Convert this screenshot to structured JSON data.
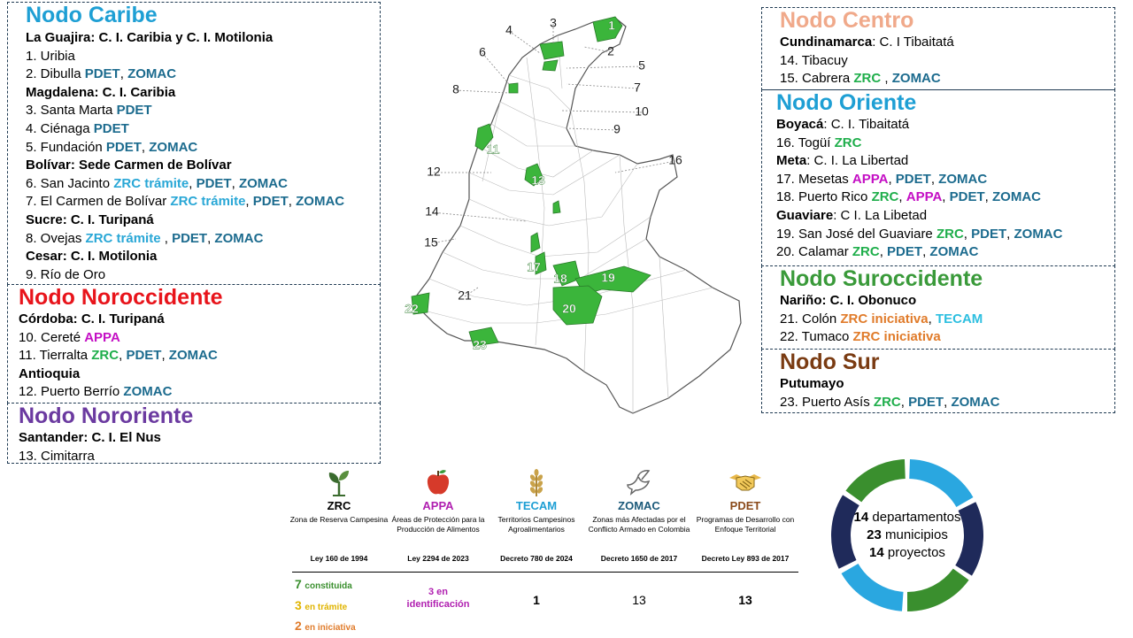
{
  "nodes": {
    "caribe": {
      "title": "Nodo Caribe",
      "color": "#1e9fd4",
      "lines": [
        [
          {
            "t": "La Guajira: C. I. Caribia y C. I. Motilonia",
            "c": "b"
          }
        ],
        [
          {
            "t": "1. Uribia",
            "c": ""
          }
        ],
        [
          {
            "t": "2. Dibulla ",
            "c": ""
          },
          {
            "t": "PDET",
            "c": "pdet"
          },
          {
            "t": ", ",
            "c": ""
          },
          {
            "t": "ZOMAC",
            "c": "zomac"
          }
        ],
        [
          {
            "t": "Magdalena: C. I. Caribia",
            "c": "b"
          }
        ],
        [
          {
            "t": "3. Santa Marta ",
            "c": ""
          },
          {
            "t": "PDET",
            "c": "pdet"
          }
        ],
        [
          {
            "t": "4. Ciénaga ",
            "c": ""
          },
          {
            "t": "PDET",
            "c": "pdet"
          }
        ],
        [
          {
            "t": "5. Fundación ",
            "c": ""
          },
          {
            "t": "PDET",
            "c": "pdet"
          },
          {
            "t": ", ",
            "c": ""
          },
          {
            "t": "ZOMAC",
            "c": "zomac"
          }
        ],
        [
          {
            "t": "Bolívar: Sede Carmen de Bolívar",
            "c": "b"
          }
        ],
        [
          {
            "t": "6. San Jacinto ",
            "c": ""
          },
          {
            "t": "ZRC trámite",
            "c": "zrct"
          },
          {
            "t": ", ",
            "c": ""
          },
          {
            "t": "PDET",
            "c": "pdet"
          },
          {
            "t": ", ",
            "c": ""
          },
          {
            "t": "ZOMAC",
            "c": "zomac"
          }
        ],
        [
          {
            "t": "7. El Carmen de Bolívar ",
            "c": ""
          },
          {
            "t": "ZRC trámite",
            "c": "zrct"
          },
          {
            "t": ", ",
            "c": ""
          },
          {
            "t": "PDET",
            "c": "pdet"
          },
          {
            "t": ", ",
            "c": ""
          },
          {
            "t": "ZOMAC",
            "c": "zomac"
          }
        ],
        [
          {
            "t": "Sucre: C. I. Turipaná",
            "c": "b"
          }
        ],
        [
          {
            "t": "8. Ovejas ",
            "c": ""
          },
          {
            "t": "ZRC trámite",
            "c": "zrct"
          },
          {
            "t": " , ",
            "c": ""
          },
          {
            "t": "PDET",
            "c": "pdet"
          },
          {
            "t": ", ",
            "c": ""
          },
          {
            "t": "ZOMAC",
            "c": "zomac"
          }
        ],
        [
          {
            "t": "Cesar: C. I. Motilonia",
            "c": "b"
          }
        ],
        [
          {
            "t": "9. Río de Oro",
            "c": ""
          }
        ]
      ]
    },
    "noroccidente": {
      "title": "Nodo Noroccidente",
      "color": "#e8141b",
      "lines": [
        [
          {
            "t": "Córdoba: C. I. Turipaná",
            "c": "b"
          }
        ],
        [
          {
            "t": "10. Cereté ",
            "c": ""
          },
          {
            "t": "APPA",
            "c": "appa"
          }
        ],
        [
          {
            "t": "11. Tierralta ",
            "c": ""
          },
          {
            "t": "ZRC",
            "c": "zrc"
          },
          {
            "t": ", ",
            "c": ""
          },
          {
            "t": "PDET",
            "c": "pdet"
          },
          {
            "t": ", ",
            "c": ""
          },
          {
            "t": "ZOMAC",
            "c": "zomac"
          }
        ],
        [
          {
            "t": "Antioquia",
            "c": "b"
          }
        ],
        [
          {
            "t": "12. Puerto Berrío ",
            "c": ""
          },
          {
            "t": "ZOMAC",
            "c": "zomac"
          }
        ]
      ]
    },
    "nororiente": {
      "title": "Nodo Nororiente",
      "color": "#6b3aa0",
      "lines": [
        [
          {
            "t": "Santander: C. I. El Nus",
            "c": "b"
          }
        ],
        [
          {
            "t": "13. Cimitarra",
            "c": ""
          }
        ]
      ]
    },
    "centro": {
      "title": "Nodo Centro",
      "color": "#f0a98a",
      "lines": [
        [
          {
            "t": "Cundinamarca",
            "c": "b"
          },
          {
            "t": ": C. I Tibaitatá",
            "c": ""
          }
        ],
        [
          {
            "t": "14. Tibacuy",
            "c": ""
          }
        ],
        [
          {
            "t": "15. Cabrera ",
            "c": ""
          },
          {
            "t": "ZRC",
            "c": "zrc"
          },
          {
            "t": " , ",
            "c": ""
          },
          {
            "t": "ZOMAC",
            "c": "zomac"
          }
        ]
      ]
    },
    "oriente": {
      "title": "Nodo Oriente",
      "color": "#1e9fd4",
      "lines": [
        [
          {
            "t": "Boyacá",
            "c": "b"
          },
          {
            "t": ": C. I. Tibaitatá",
            "c": ""
          }
        ],
        [
          {
            "t": "16. Togüí ",
            "c": ""
          },
          {
            "t": "ZRC",
            "c": "zrc"
          }
        ],
        [
          {
            "t": "Meta",
            "c": "b"
          },
          {
            "t": ":   C. I. La Libertad",
            "c": ""
          }
        ],
        [
          {
            "t": "17. Mesetas ",
            "c": ""
          },
          {
            "t": "APPA",
            "c": "appa"
          },
          {
            "t": ", ",
            "c": ""
          },
          {
            "t": "PDET",
            "c": "pdet"
          },
          {
            "t": ", ",
            "c": ""
          },
          {
            "t": "ZOMAC",
            "c": "zomac"
          }
        ],
        [
          {
            "t": "18. Puerto Rico ",
            "c": ""
          },
          {
            "t": "ZRC",
            "c": "zrc"
          },
          {
            "t": ", ",
            "c": ""
          },
          {
            "t": "APPA",
            "c": "appa"
          },
          {
            "t": ", ",
            "c": ""
          },
          {
            "t": "PDET",
            "c": "pdet"
          },
          {
            "t": ", ",
            "c": ""
          },
          {
            "t": "ZOMAC",
            "c": "zomac"
          }
        ],
        [
          {
            "t": "Guaviare",
            "c": "b"
          },
          {
            "t": ":  C I. La Libetad",
            "c": ""
          }
        ],
        [
          {
            "t": "19. San José del Guaviare ",
            "c": ""
          },
          {
            "t": "ZRC",
            "c": "zrc"
          },
          {
            "t": ", ",
            "c": ""
          },
          {
            "t": "PDET",
            "c": "pdet"
          },
          {
            "t": ", ",
            "c": ""
          },
          {
            "t": "ZOMAC",
            "c": "zomac"
          }
        ],
        [
          {
            "t": "20. Calamar ",
            "c": ""
          },
          {
            "t": "ZRC",
            "c": "zrc"
          },
          {
            "t": ", ",
            "c": ""
          },
          {
            "t": "PDET",
            "c": "pdet"
          },
          {
            "t": ", ",
            "c": ""
          },
          {
            "t": "ZOMAC",
            "c": "zomac"
          }
        ]
      ]
    },
    "suroccidente": {
      "title": "Nodo Suroccidente",
      "color": "#3a9a3a",
      "lines": [
        [
          {
            "t": "Nariño: C. I. Obonuco",
            "c": "b"
          }
        ],
        [
          {
            "t": "21. Colón ",
            "c": ""
          },
          {
            "t": "ZRC iniciativa",
            "c": "zrci"
          },
          {
            "t": ", ",
            "c": ""
          },
          {
            "t": "TECAM",
            "c": "tecam"
          }
        ],
        [
          {
            "t": "22. Tumaco ",
            "c": ""
          },
          {
            "t": "ZRC iniciativa",
            "c": "zrci"
          }
        ]
      ]
    },
    "sur": {
      "title": "Nodo Sur",
      "color": "#7a3b12",
      "lines": [
        [
          {
            "t": "Putumayo",
            "c": "b"
          }
        ],
        [
          {
            "t": "23. Puerto Asís ",
            "c": ""
          },
          {
            "t": "ZRC",
            "c": "zrc"
          },
          {
            "t": ", ",
            "c": ""
          },
          {
            "t": "PDET",
            "c": "pdet"
          },
          {
            "t": ", ",
            "c": ""
          },
          {
            "t": "ZOMAC",
            "c": "zomac"
          }
        ]
      ]
    }
  },
  "map": {
    "labels": [
      "1",
      "2",
      "3",
      "4",
      "5",
      "6",
      "7",
      "8",
      "9",
      "10",
      "11",
      "12",
      "13",
      "14",
      "15",
      "16",
      "17",
      "18",
      "19",
      "20",
      "21",
      "22",
      "23"
    ]
  },
  "legend": [
    {
      "icon": "sprout-icon",
      "title": "ZRC",
      "title_color": "#000000",
      "desc": "Zona de Reserva Campesina",
      "law": "Ley 160 de 1994"
    },
    {
      "icon": "apple-icon",
      "title": "APPA",
      "title_color": "#b01fb0",
      "desc": "Áreas de Protección para la Producción de Alimentos",
      "law": "Ley 2294 de 2023"
    },
    {
      "icon": "wheat-icon",
      "title": "TECAM",
      "title_color": "#1e9fd4",
      "desc": "Territorios Campesinos Agroalimentarios",
      "law": "Decreto 780 de 2024"
    },
    {
      "icon": "dove-icon",
      "title": "ZOMAC",
      "title_color": "#1c5a7a",
      "desc": "Zonas más Afectadas por el Conflicto Armado en Colombia",
      "law": "Decreto 1650 de 2017"
    },
    {
      "icon": "handshake-icon",
      "title": "PDET",
      "title_color": "#8a4a1a",
      "desc": "Programas de Desarrollo con Enfoque Territorial",
      "law": "Decreto Ley 893 de 2017"
    }
  ],
  "zrc_status": [
    {
      "num": "7",
      "label": "constituida"
    },
    {
      "num": "3",
      "label": "en trámite"
    },
    {
      "num": "2",
      "label": "en iniciativa"
    }
  ],
  "legend_values": {
    "appa_line1": "3 en",
    "appa_line2": "identificación",
    "tecam": "1",
    "zomac": "13",
    "pdet": "13"
  },
  "summary": {
    "dept_num": "14",
    "dept_label": " departamentos",
    "mun_num": "23",
    "mun_label": " municipios",
    "proj_num": "14",
    "proj_label": " proyectos",
    "colors": [
      "#2aa7e0",
      "#1f2a5a",
      "#3a8f2e"
    ]
  }
}
